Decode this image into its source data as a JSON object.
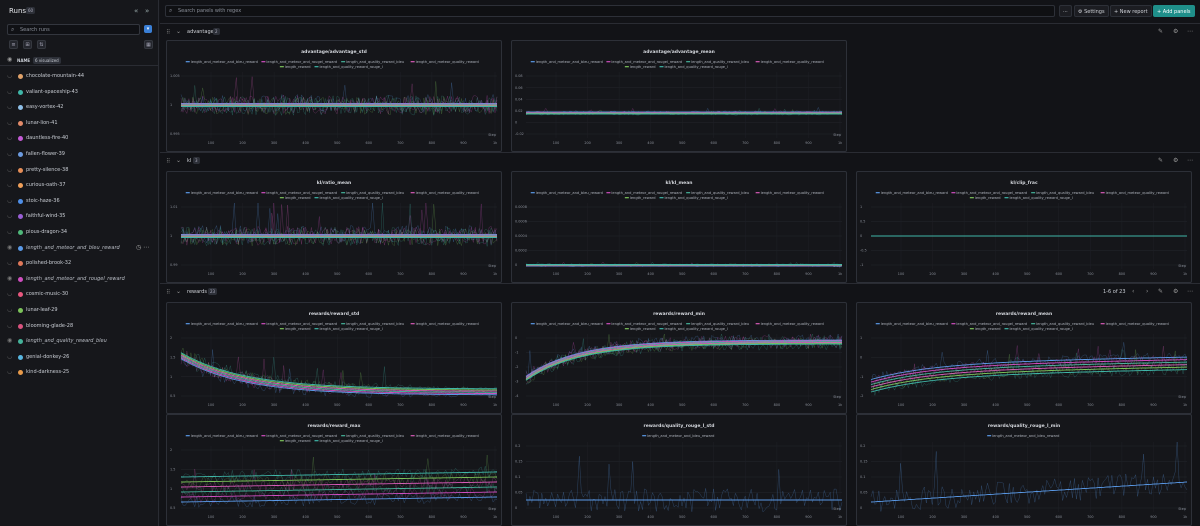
{
  "sidebar": {
    "title": "Runs",
    "count": "60",
    "search_placeholder": "Search runs",
    "name_col": "NAME",
    "visualized": "6 visualized",
    "runs": [
      {
        "name": "chocolate-mountain-44",
        "color": "#e0a26a",
        "italic": false
      },
      {
        "name": "valiant-spaceship-43",
        "color": "#3fb6a8",
        "italic": false
      },
      {
        "name": "easy-vortex-42",
        "color": "#8fc0e8",
        "italic": false
      },
      {
        "name": "lunar-lion-41",
        "color": "#e38b6a",
        "italic": false
      },
      {
        "name": "dauntless-fire-40",
        "color": "#c45ad6",
        "italic": false
      },
      {
        "name": "fallen-flower-39",
        "color": "#6c9be0",
        "italic": false
      },
      {
        "name": "pretty-silence-38",
        "color": "#e58e58",
        "italic": false
      },
      {
        "name": "curious-oath-37",
        "color": "#f0a05a",
        "italic": false
      },
      {
        "name": "stoic-haze-36",
        "color": "#4f8fe8",
        "italic": false
      },
      {
        "name": "faithful-wind-35",
        "color": "#9a5fd6",
        "italic": false
      },
      {
        "name": "pious-dragon-34",
        "color": "#4fb87a",
        "italic": false
      },
      {
        "name": "length_and_meteor_and_bleu_reward",
        "color": "#5a9ae8",
        "italic": true
      },
      {
        "name": "polished-brook-32",
        "color": "#e0785a",
        "italic": false
      },
      {
        "name": "length_and_meteor_and_rougel_reward",
        "color": "#d04ec0",
        "italic": true
      },
      {
        "name": "cosmic-music-30",
        "color": "#e8577e",
        "italic": false
      },
      {
        "name": "lunar-leaf-29",
        "color": "#7cc35a",
        "italic": false
      },
      {
        "name": "blooming-glade-28",
        "color": "#d9537e",
        "italic": false
      },
      {
        "name": "length_and_quality_reward_bleu",
        "color": "#45b39a",
        "italic": true
      },
      {
        "name": "genial-donkey-26",
        "color": "#58b6e0",
        "italic": false
      },
      {
        "name": "kind-darkness-25",
        "color": "#e89a4a",
        "italic": false
      }
    ]
  },
  "toolbar": {
    "search_placeholder": "Search panels with regex",
    "more": "···",
    "settings": "Settings",
    "new_report": "New report",
    "add_panels": "Add panels"
  },
  "sections": [
    {
      "title": "advantage",
      "count": "2"
    },
    {
      "title": "kl",
      "count": "3"
    },
    {
      "title": "rewards",
      "count": "23",
      "pagination": "1-6 of 23"
    }
  ],
  "legend": {
    "row1": [
      "length_and_meteor_and_bleu_reward",
      "length_and_meteor_and_rougel_reward",
      "length_and_quality_reward_bleu",
      "length_and_meteor_quality_reward"
    ],
    "row2": [
      "length_reward",
      "length_and_quality_reward_rouge_l"
    ],
    "single": "length_and_meteor_and_bleu_reward",
    "colors": [
      "#5a9ae8",
      "#d04ec0",
      "#45b39a",
      "#d85ab8",
      "#7cc35a",
      "#3fb6a8"
    ]
  },
  "x_ticks": [
    "100",
    "200",
    "300",
    "400",
    "500",
    "600",
    "700",
    "800",
    "900",
    "1k"
  ],
  "x_label": "Step",
  "panels": [
    {
      "title": "advantage/advantage_std",
      "yticks": [
        "1.005",
        "1",
        "0.995"
      ],
      "kind": "flat-noisy"
    },
    {
      "title": "advantage/advantage_mean",
      "yticks": [
        "0.08",
        "0.06",
        "0.04",
        "0.02",
        "0",
        "-0.02"
      ],
      "kind": "flat"
    },
    {
      "title": "kl/ratio_mean",
      "yticks": [
        "1.01",
        "1",
        "0.99"
      ],
      "kind": "flat-noisy"
    },
    {
      "title": "kl/kl_mean",
      "yticks": [
        "0.0008",
        "0.0006",
        "0.0004",
        "0.0002",
        "0"
      ],
      "kind": "low"
    },
    {
      "title": "kl/clip_frac",
      "yticks": [
        "1",
        "0.5",
        "0",
        "-0.5",
        "-1"
      ],
      "kind": "zero"
    },
    {
      "title": "rewards/reward_std",
      "yticks": [
        "2",
        "1.5",
        "1",
        "0.5"
      ],
      "kind": "decay"
    },
    {
      "title": "rewards/reward_min",
      "yticks": [
        "0",
        "-1",
        "-2",
        "-3",
        "-4"
      ],
      "kind": "rise"
    },
    {
      "title": "rewards/reward_mean",
      "yticks": [
        "1",
        "0",
        "-1",
        "-2"
      ],
      "kind": "rise-soft"
    },
    {
      "title": "rewards/reward_max",
      "yticks": [
        "2",
        "1.5",
        "1",
        "0.5"
      ],
      "kind": "band"
    },
    {
      "title": "rewards/quality_rouge_l_std",
      "yticks": [
        "0.2",
        "0.15",
        "0.1",
        "0.05",
        "0"
      ],
      "kind": "single-noisy"
    },
    {
      "title": "rewards/quality_rouge_l_min",
      "yticks": [
        "0.2",
        "0.15",
        "0.1",
        "0.05",
        "0"
      ],
      "kind": "single-rise"
    }
  ]
}
